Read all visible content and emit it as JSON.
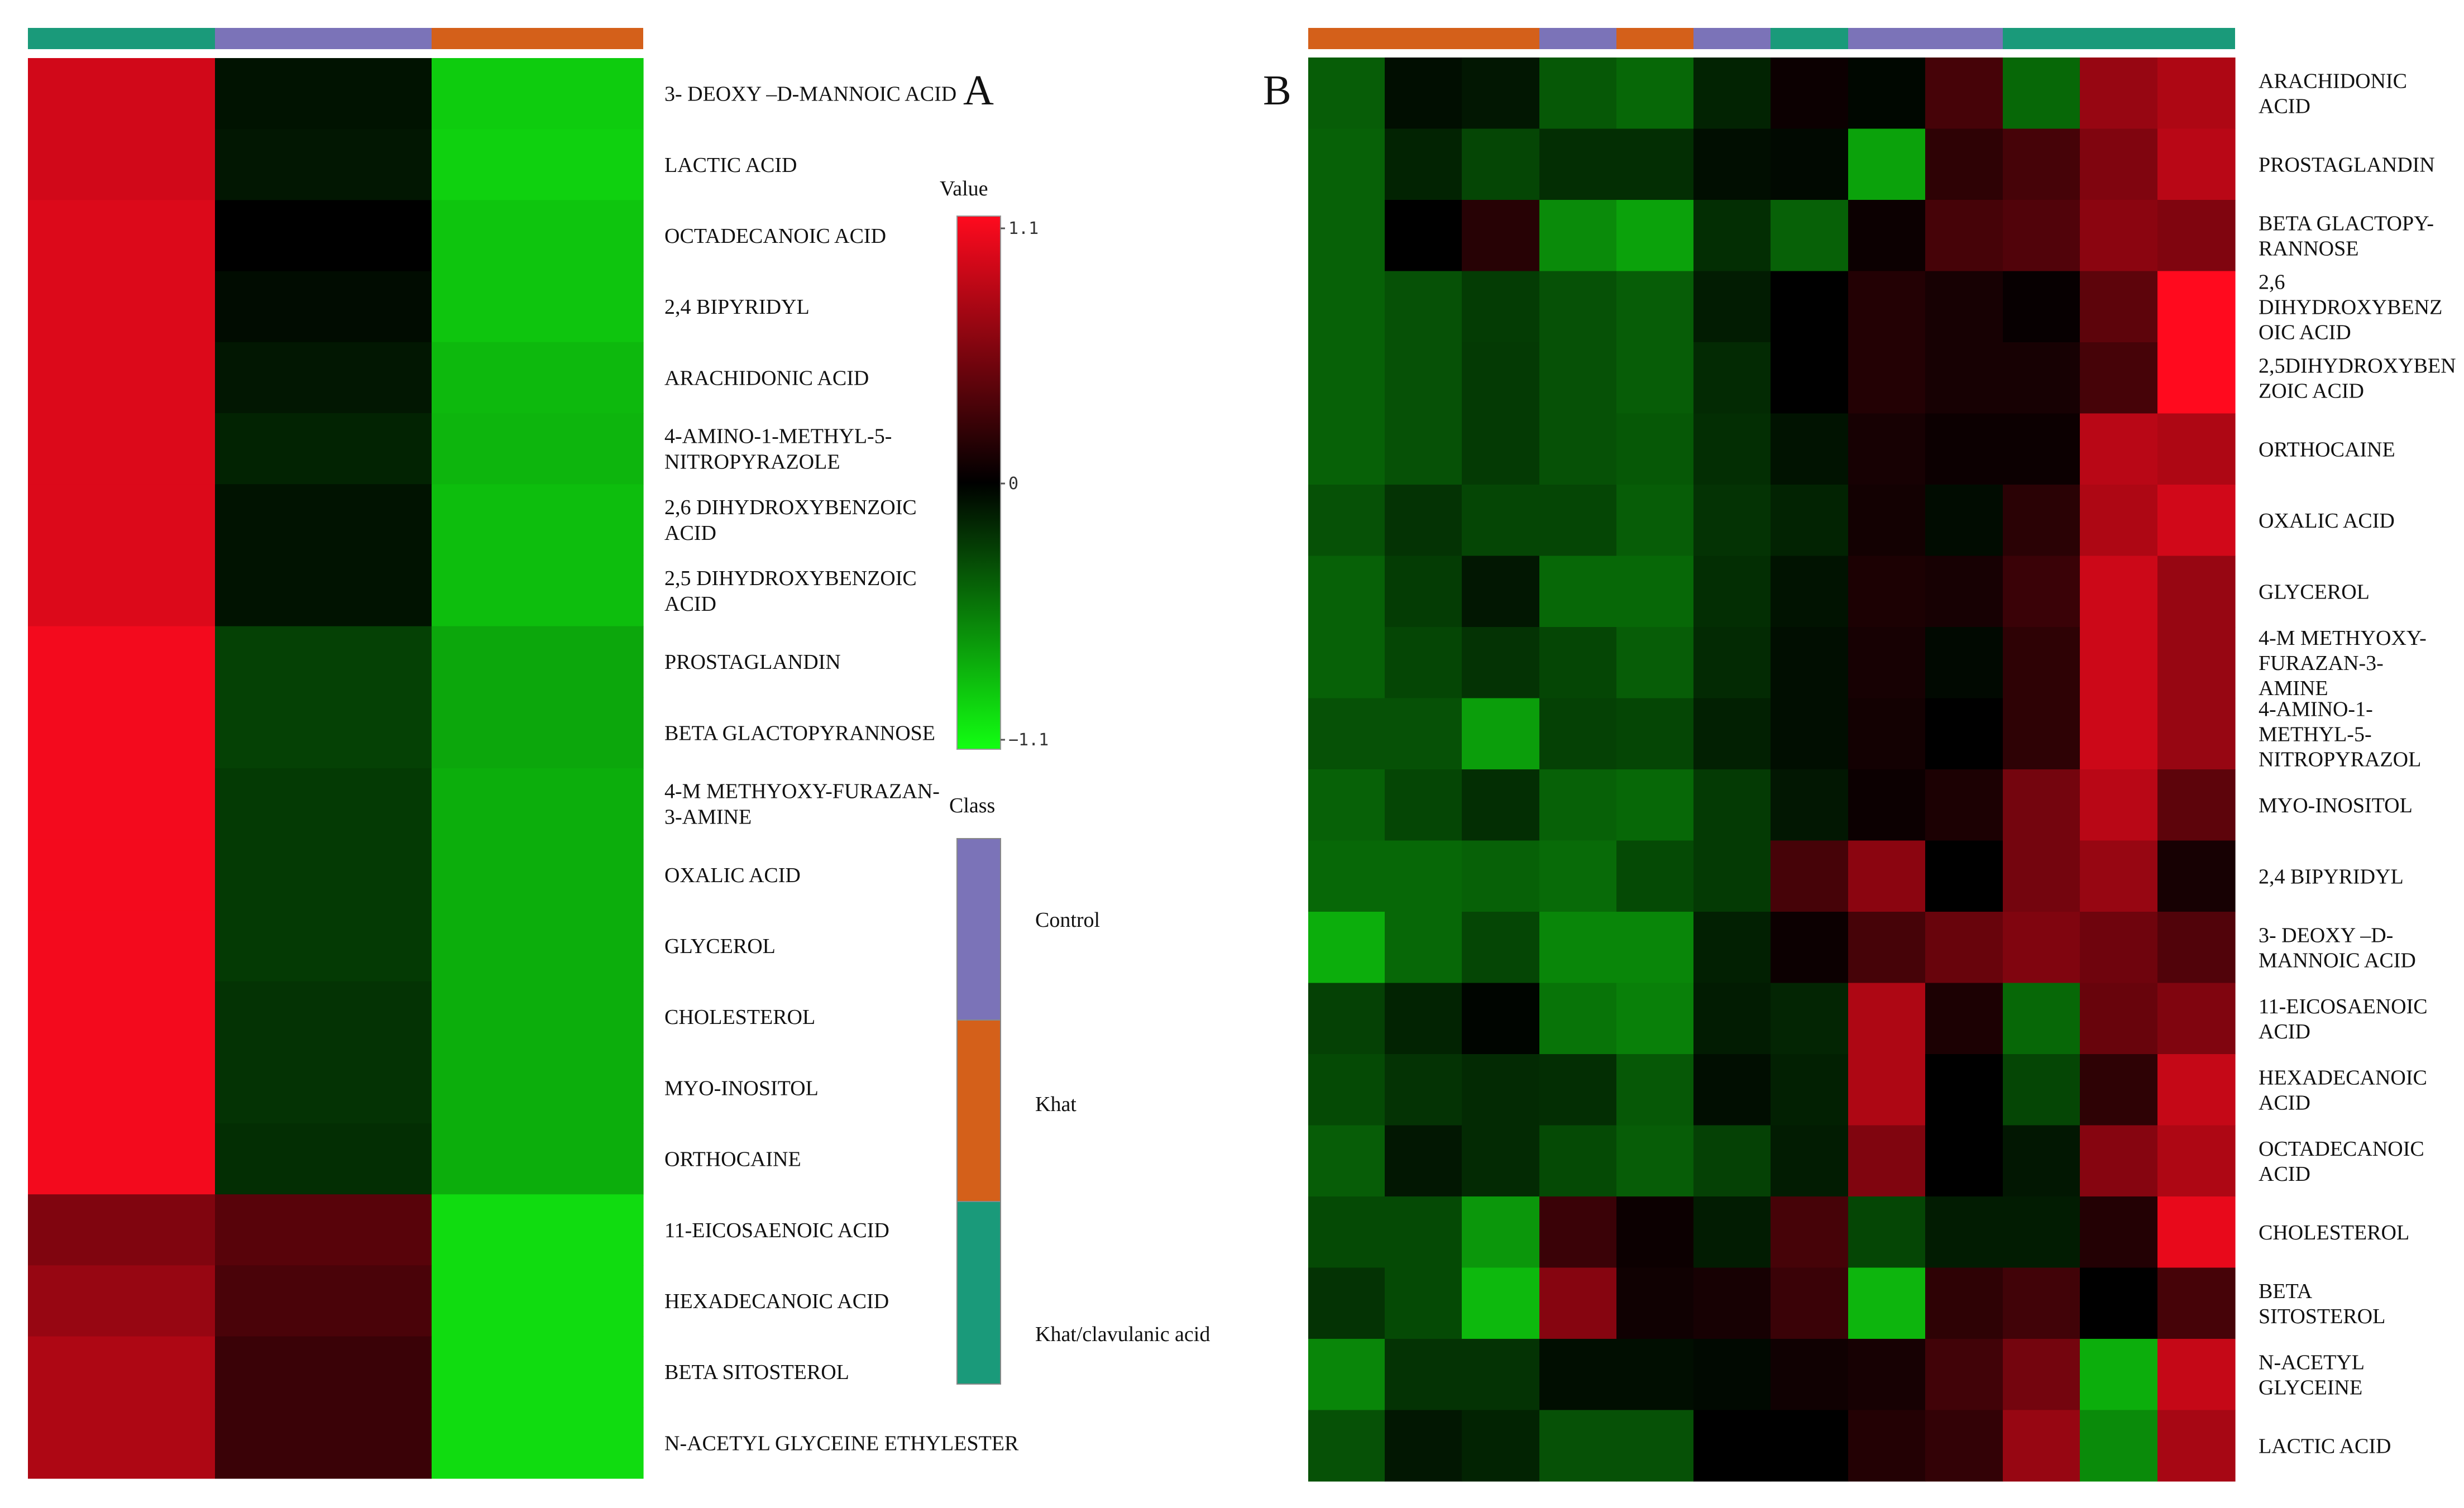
{
  "colors": {
    "control": "#7b73b8",
    "khat": "#d4601a",
    "khat_clavulanic": "#1a9a7a",
    "high": "#ff0a1e",
    "mid": "#000000",
    "low": "#12ff12"
  },
  "chart_data": [
    {
      "panel": "A",
      "type": "heatmap",
      "title": "A",
      "value_range": [
        -1.1,
        1.1
      ],
      "columns": [
        "Khat/clavulanic acid",
        "Control",
        "Khat"
      ],
      "rows": [
        {
          "label": [
            "3- DEOXY –D-MANNOIC ACID"
          ],
          "values": [
            0.9,
            -0.08,
            -0.88
          ]
        },
        {
          "label": [
            "LACTIC  ACID"
          ],
          "values": [
            0.9,
            -0.1,
            -0.9
          ]
        },
        {
          "label": [
            "OCTADECANOIC  ACID"
          ],
          "values": [
            0.95,
            0.0,
            -0.85
          ]
        },
        {
          "label": [
            "2,4 BIPYRIDYL"
          ],
          "values": [
            0.95,
            -0.05,
            -0.85
          ]
        },
        {
          "label": [
            "ARACHIDONIC ACID"
          ],
          "values": [
            0.95,
            -0.1,
            -0.8
          ]
        },
        {
          "label": [
            "4-AMINO-1-METHYL-5-",
            "NITROPYRAZOLE"
          ],
          "values": [
            0.95,
            -0.15,
            -0.78
          ]
        },
        {
          "label": [
            "2,6 DIHYDROXYBENZOIC",
            "ACID"
          ],
          "values": [
            0.95,
            -0.08,
            -0.82
          ]
        },
        {
          "label": [
            "2,5 DIHYDROXYBENZOIC",
            "ACID"
          ],
          "values": [
            0.95,
            -0.08,
            -0.82
          ]
        },
        {
          "label": [
            "PROSTAGLANDIN"
          ],
          "values": [
            1.05,
            -0.28,
            -0.72
          ]
        },
        {
          "label": [
            "BETA GLACTOPYRANNOSE"
          ],
          "values": [
            1.05,
            -0.28,
            -0.72
          ]
        },
        {
          "label": [
            "4-M METHYOXY-FURAZAN-",
            "3-AMINE"
          ],
          "values": [
            1.05,
            -0.25,
            -0.75
          ]
        },
        {
          "label": [
            "OXALIC ACID"
          ],
          "values": [
            1.05,
            -0.25,
            -0.75
          ]
        },
        {
          "label": [
            "GLYCEROL"
          ],
          "values": [
            1.05,
            -0.25,
            -0.75
          ]
        },
        {
          "label": [
            "CHOLESTEROL"
          ],
          "values": [
            1.05,
            -0.22,
            -0.75
          ]
        },
        {
          "label": [
            "MYO-INOSITOL"
          ],
          "values": [
            1.05,
            -0.22,
            -0.75
          ]
        },
        {
          "label": [
            "ORTHOCAINE"
          ],
          "values": [
            1.05,
            -0.2,
            -0.75
          ]
        },
        {
          "label": [
            "11-EICOSAENOIC ACID"
          ],
          "values": [
            0.55,
            0.38,
            -0.95
          ]
        },
        {
          "label": [
            "HEXADECANOIC ACID"
          ],
          "values": [
            0.65,
            0.32,
            -0.95
          ]
        },
        {
          "label": [
            "BETA SITOSTEROL"
          ],
          "values": [
            0.75,
            0.25,
            -0.95
          ]
        },
        {
          "label": [
            "N-ACETYL GLYCEINE ETHYLESTER"
          ],
          "values": [
            0.75,
            0.25,
            -0.95
          ]
        }
      ]
    },
    {
      "panel": "B",
      "type": "heatmap",
      "title": "B",
      "value_range": [
        -1.1,
        1.1
      ],
      "columns": [
        "Khat",
        "Khat",
        "Khat",
        "Control",
        "Khat",
        "Control",
        "Khat/clavulanic acid",
        "Control",
        "Control",
        "Khat/clavulanic acid",
        "Khat/clavulanic acid",
        "Khat/clavulanic acid"
      ],
      "rows": [
        {
          "label": [
            "ARACHIDONIC",
            "ACID"
          ],
          "values": [
            -0.4,
            -0.06,
            -0.1,
            -0.38,
            -0.45,
            -0.15,
            0.05,
            -0.03,
            0.3,
            -0.45,
            0.65,
            0.75
          ]
        },
        {
          "label": [
            "PROSTAGLANDIN"
          ],
          "values": [
            -0.42,
            -0.15,
            -0.3,
            -0.2,
            -0.2,
            -0.06,
            -0.04,
            -0.7,
            0.2,
            0.3,
            0.55,
            0.8
          ]
        },
        {
          "label": [
            "BETA GLACTOPY-",
            "RANNOSE"
          ],
          "values": [
            -0.42,
            0.0,
            0.17,
            -0.6,
            -0.7,
            -0.2,
            -0.42,
            0.05,
            0.3,
            0.35,
            0.6,
            0.55
          ]
        },
        {
          "label": [
            "2,6",
            "DIHYDROXYBENZ",
            "OIC ACID"
          ],
          "values": [
            -0.42,
            -0.35,
            -0.26,
            -0.35,
            -0.4,
            -0.12,
            0.0,
            0.15,
            0.1,
            0.03,
            0.4,
            1.1
          ]
        },
        {
          "label": [
            "2,5DIHYDROXYBEN",
            "ZOIC ACID"
          ],
          "values": [
            -0.42,
            -0.35,
            -0.25,
            -0.35,
            -0.4,
            -0.18,
            0.0,
            0.15,
            0.1,
            0.1,
            0.3,
            1.1
          ]
        },
        {
          "label": [
            "ORTHOCAINE"
          ],
          "values": [
            -0.42,
            -0.35,
            -0.25,
            -0.35,
            -0.38,
            -0.2,
            -0.08,
            0.1,
            0.05,
            0.05,
            0.8,
            0.75
          ]
        },
        {
          "label": [
            "OXALIC ACID"
          ],
          "values": [
            -0.35,
            -0.22,
            -0.3,
            -0.3,
            -0.4,
            -0.22,
            -0.15,
            0.08,
            -0.05,
            0.18,
            0.75,
            0.9
          ]
        },
        {
          "label": [
            "GLYCEROL"
          ],
          "values": [
            -0.42,
            -0.26,
            -0.1,
            -0.45,
            -0.45,
            -0.2,
            -0.08,
            0.12,
            0.1,
            0.25,
            0.88,
            0.65
          ]
        },
        {
          "label": [
            "4-M METHYOXY-",
            "FURAZAN-3-",
            "AMINE"
          ],
          "values": [
            -0.42,
            -0.3,
            -0.22,
            -0.3,
            -0.4,
            -0.18,
            -0.06,
            0.1,
            -0.04,
            0.2,
            0.88,
            0.65
          ]
        },
        {
          "label": [
            "4-AMINO-1-",
            "METHYL-5-",
            "NITROPYRAZOL"
          ],
          "values": [
            -0.35,
            -0.35,
            -0.68,
            -0.28,
            -0.3,
            -0.14,
            -0.06,
            0.08,
            0.0,
            0.2,
            0.88,
            0.65
          ]
        },
        {
          "label": [
            "MYO-INOSITOL"
          ],
          "values": [
            -0.42,
            -0.3,
            -0.2,
            -0.42,
            -0.45,
            -0.25,
            -0.1,
            0.05,
            0.12,
            0.5,
            0.8,
            0.4
          ]
        },
        {
          "label": [
            "2,4 BIPYRIDYL"
          ],
          "values": [
            -0.45,
            -0.45,
            -0.42,
            -0.46,
            -0.32,
            -0.25,
            0.3,
            0.6,
            0.0,
            0.5,
            0.65,
            0.1
          ]
        },
        {
          "label": [
            "3- DEOXY –D-",
            "MANNOIC ACID"
          ],
          "values": [
            -0.75,
            -0.45,
            -0.3,
            -0.58,
            -0.58,
            -0.14,
            0.05,
            0.3,
            0.45,
            0.55,
            0.48,
            0.35
          ]
        },
        {
          "label": [
            "11-EICOSAENOIC",
            "ACID"
          ],
          "values": [
            -0.28,
            -0.15,
            -0.02,
            -0.5,
            -0.55,
            -0.12,
            -0.16,
            0.75,
            0.12,
            -0.45,
            0.45,
            0.55
          ]
        },
        {
          "label": [
            "HEXADECANOIC",
            "ACID"
          ],
          "values": [
            -0.32,
            -0.22,
            -0.18,
            -0.2,
            -0.38,
            -0.06,
            -0.14,
            0.75,
            0.0,
            -0.3,
            0.2,
            0.85
          ]
        },
        {
          "label": [
            "OCTADECANOIC",
            "ACID"
          ],
          "values": [
            -0.4,
            -0.1,
            -0.18,
            -0.32,
            -0.4,
            -0.28,
            -0.12,
            0.55,
            0.0,
            -0.1,
            0.58,
            0.75
          ]
        },
        {
          "label": [
            "CHOLESTEROL"
          ],
          "values": [
            -0.32,
            -0.32,
            -0.65,
            0.25,
            0.05,
            -0.12,
            0.3,
            -0.3,
            -0.12,
            -0.12,
            0.15,
            1.0
          ]
        },
        {
          "label": [
            "BETA",
            "SITOSTEROL"
          ],
          "values": [
            -0.22,
            -0.32,
            -0.8,
            0.58,
            0.07,
            0.1,
            0.25,
            -0.78,
            0.2,
            0.28,
            0.0,
            0.3
          ]
        },
        {
          "label": [
            "N-ACETYL",
            "GLYCEINE"
          ],
          "values": [
            -0.58,
            -0.22,
            -0.22,
            -0.06,
            -0.06,
            -0.04,
            0.07,
            0.1,
            0.28,
            0.5,
            -0.75,
            0.85
          ]
        },
        {
          "label": [
            "LACTIC  ACID"
          ],
          "values": [
            -0.35,
            -0.1,
            -0.15,
            -0.35,
            -0.35,
            0.0,
            0.0,
            0.15,
            0.22,
            0.65,
            -0.6,
            0.72
          ]
        }
      ]
    }
  ],
  "value_legend": {
    "title": "Value",
    "ticks": [
      "1.1",
      "0",
      "−1.1"
    ]
  },
  "class_legend": {
    "title": "Class",
    "items": [
      {
        "label": "Control",
        "color": "#7b73b8"
      },
      {
        "label": "Khat",
        "color": "#d4601a"
      },
      {
        "label": "Khat/clavulanic acid",
        "color": "#1a9a7a"
      }
    ]
  }
}
